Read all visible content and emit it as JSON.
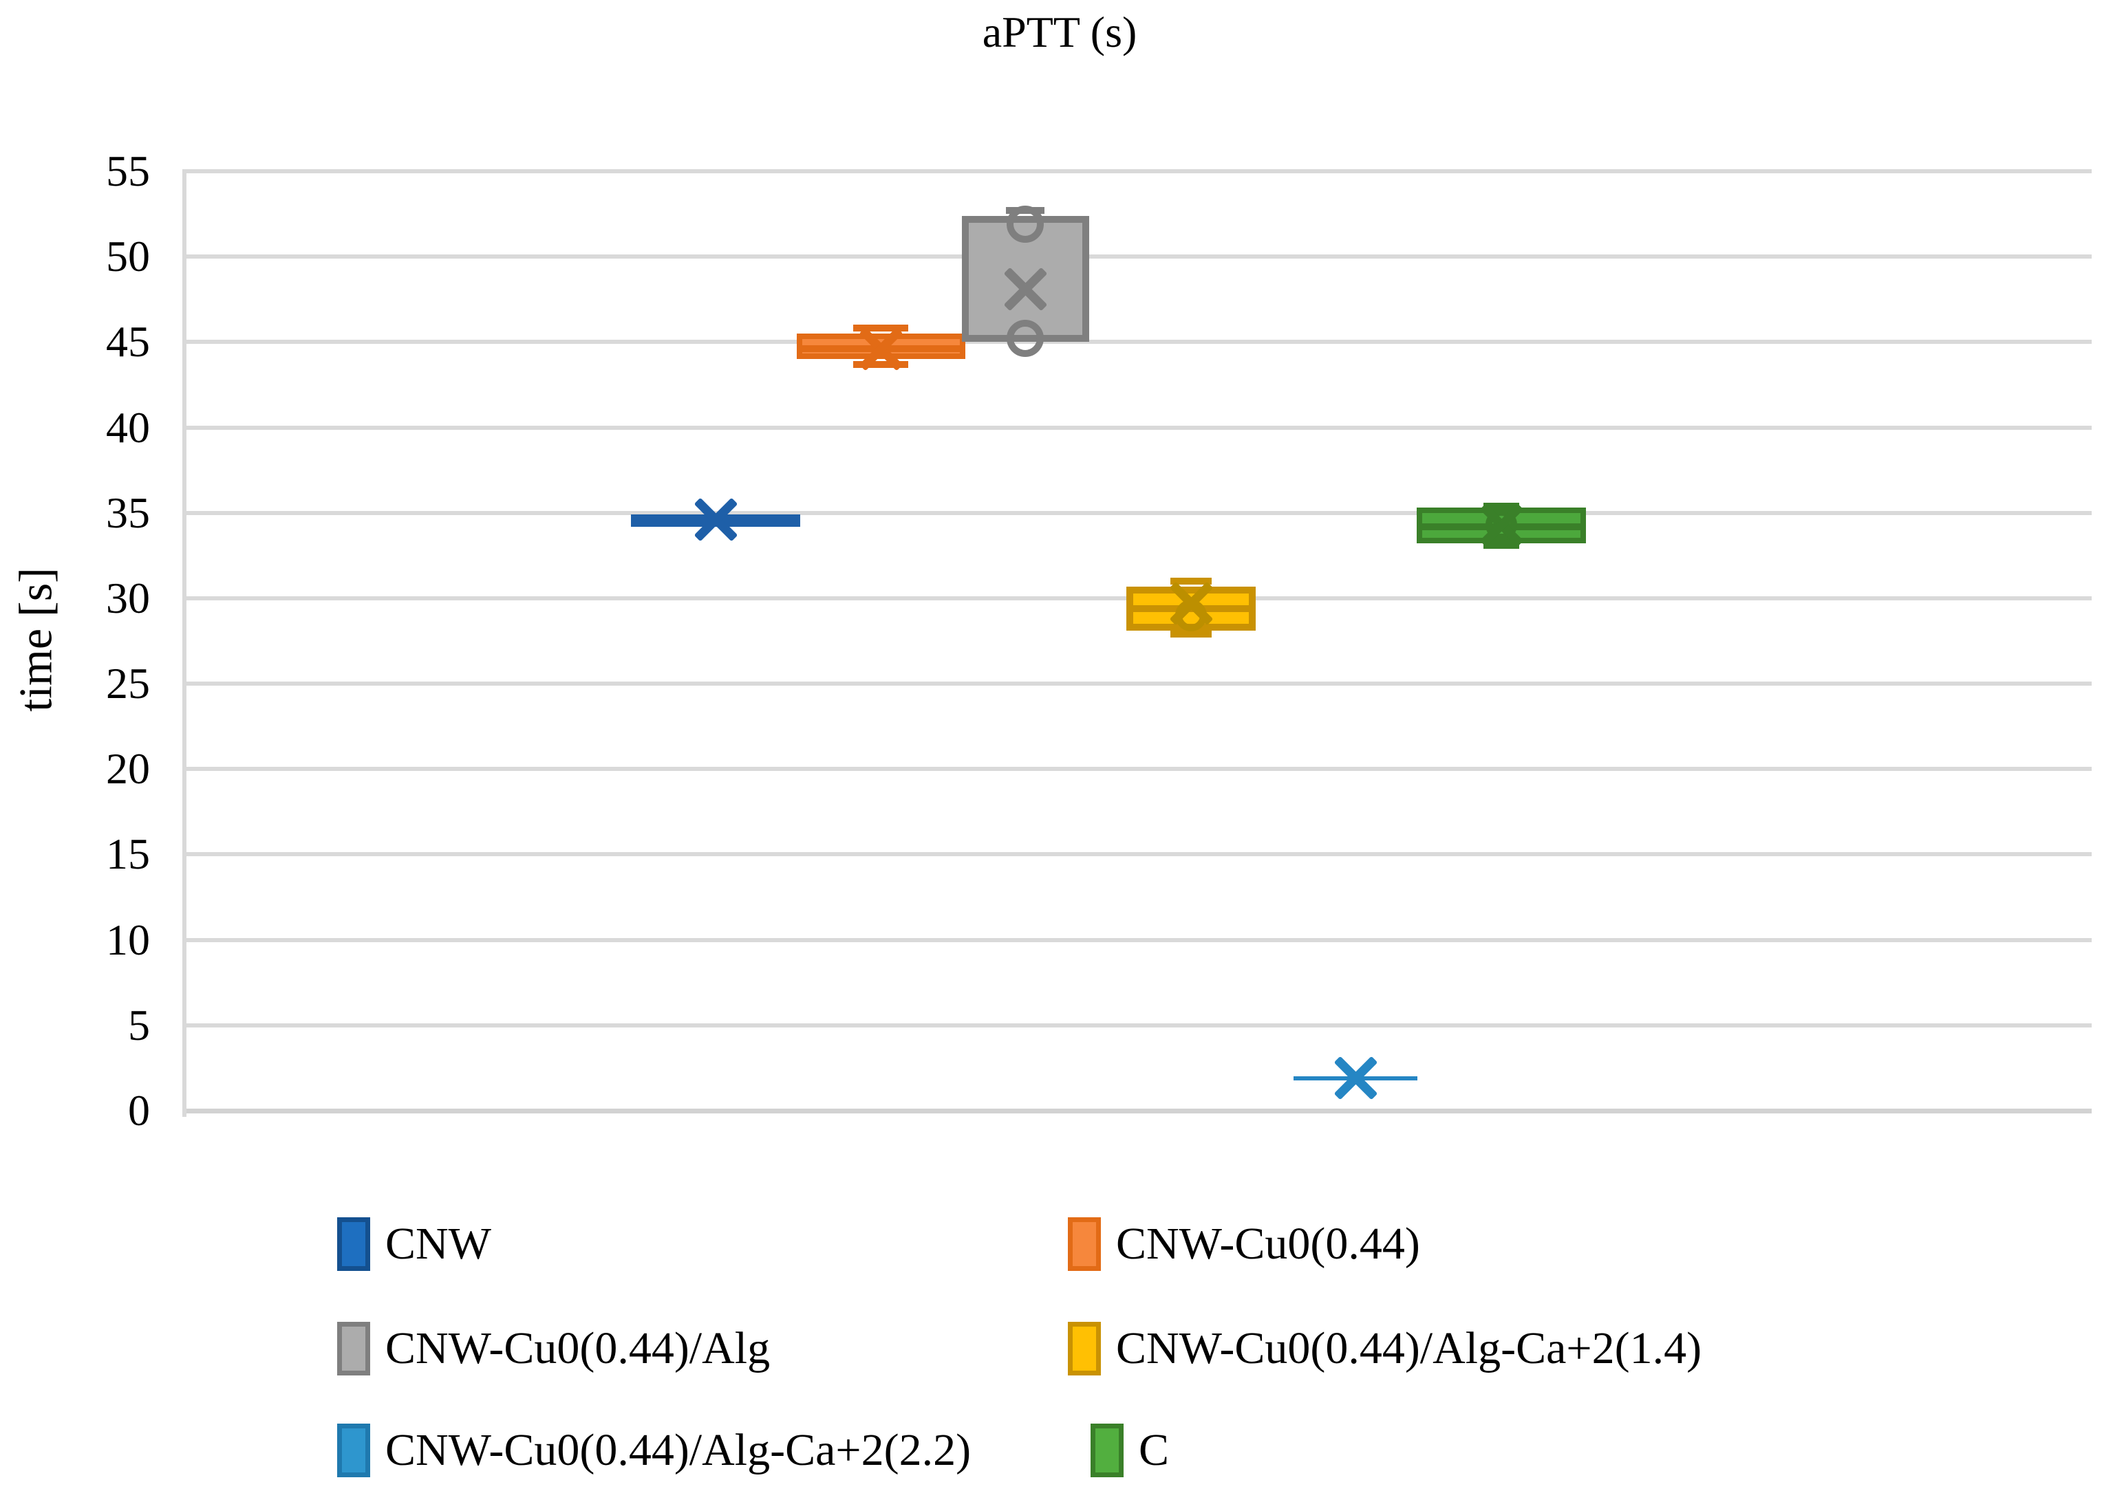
{
  "title": "aPTT (s)",
  "y_axis": {
    "label": "time [s]",
    "min": 0,
    "max": 55,
    "tick_step": 5
  },
  "grid_color": "#D9D9D9",
  "background": "#FFFFFF",
  "chart_data": {
    "type": "box",
    "title": "aPTT (s)",
    "ylabel": "time [s]",
    "ylim": [
      0,
      55
    ],
    "yticks": [
      0,
      5,
      10,
      15,
      20,
      25,
      30,
      35,
      40,
      45,
      50,
      55
    ],
    "grid": true,
    "legend_position": "bottom",
    "series": [
      {
        "name": "CNW",
        "q1": 34.2,
        "q3": 34.9,
        "median": null,
        "mean": 34.6,
        "whisker_low": 34.2,
        "whisker_high": 34.9,
        "points": [],
        "box_fill": "#1E5FA8",
        "box_border": "#1E5FA8",
        "accent": "#1E5FA8",
        "legend_fill": "#1E6FC0",
        "legend_border": "#14508F"
      },
      {
        "name": "CNW-Cu0(0.44)",
        "q1": 44.0,
        "q3": 45.5,
        "median": 44.6,
        "mean": 44.6,
        "whisker_low": 43.7,
        "whisker_high": 45.8,
        "points": [],
        "box_fill": "#F6873C",
        "box_border": "#E26B16",
        "accent": "#E26B16",
        "legend_fill": "#F6873C",
        "legend_border": "#E26B16"
      },
      {
        "name": "CNW-Cu0(0.44)/Alg",
        "q1": 45.0,
        "q3": 52.4,
        "median": null,
        "mean": 48.1,
        "whisker_low": 45.0,
        "whisker_high": 52.7,
        "points": [
          51.9,
          45.2
        ],
        "box_fill": "#ACACAC",
        "box_border": "#7F7F7F",
        "accent": "#7F7F7F",
        "legend_fill": "#ACACAC",
        "legend_border": "#7F7F7F"
      },
      {
        "name": "CNW-Cu0(0.44)/Alg-Ca+2(1.4)",
        "q1": 28.1,
        "q3": 30.7,
        "median": 29.4,
        "mean": 29.7,
        "whisker_low": 27.9,
        "whisker_high": 31.0,
        "points": [
          29.0
        ],
        "box_fill": "#FFC003",
        "box_border": "#C99203",
        "accent": "#BC8F00",
        "legend_fill": "#FFC003",
        "legend_border": "#C99203"
      },
      {
        "name": "CNW-Cu0(0.44)/Alg-Ca+2(2.2)",
        "q1": 1.8,
        "q3": 2.0,
        "median": null,
        "mean": 1.9,
        "whisker_low": 1.8,
        "whisker_high": 2.0,
        "points": [],
        "box_fill": "#2586C4",
        "box_border": "#2586C4",
        "accent": "#2586C4",
        "legend_fill": "#2E96CE",
        "legend_border": "#1F79AE"
      },
      {
        "name": "C",
        "q1": 33.2,
        "q3": 35.3,
        "median": 34.2,
        "mean": 34.3,
        "whisker_low": 33.1,
        "whisker_high": 35.4,
        "points": [
          34.3
        ],
        "box_fill": "#4CA83C",
        "box_border": "#3A8029",
        "accent": "#3A8029",
        "legend_fill": "#52AF3F",
        "legend_border": "#3A8029"
      }
    ]
  }
}
